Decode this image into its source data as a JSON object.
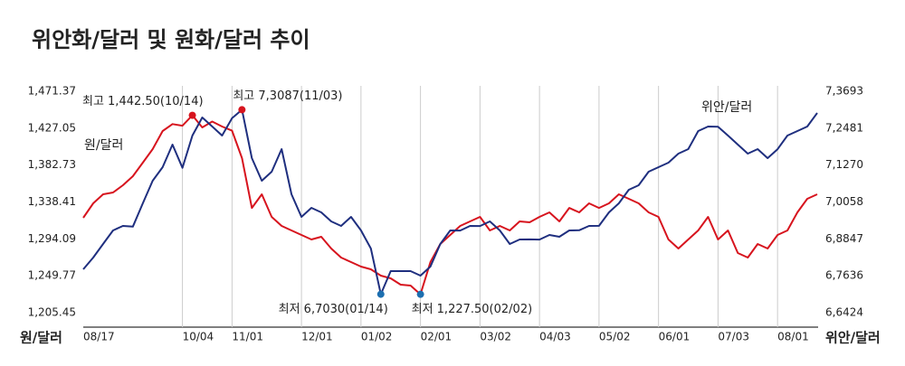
{
  "chart_data": {
    "type": "line",
    "title": "위안화/달러 및 원화/달러 추이",
    "ylabel": "원/달러",
    "y2label": "위안/달러",
    "categories": [
      "08/17",
      null,
      null,
      null,
      null,
      null,
      null,
      null,
      null,
      null,
      "10/04",
      null,
      null,
      null,
      null,
      "11/01",
      null,
      null,
      null,
      null,
      null,
      null,
      "12/01",
      null,
      null,
      null,
      null,
      null,
      "01/02",
      null,
      null,
      null,
      null,
      null,
      "02/01",
      null,
      null,
      null,
      null,
      null,
      "03/02",
      null,
      null,
      null,
      null,
      null,
      "04/03",
      null,
      null,
      null,
      null,
      null,
      "05/02",
      null,
      null,
      null,
      null,
      null,
      "06/01",
      null,
      null,
      null,
      null,
      null,
      "07/03",
      null,
      null,
      null,
      null,
      null,
      "08/01",
      null,
      null,
      null,
      null
    ],
    "series": [
      {
        "name": "원/달러",
        "color": "#d7141e",
        "axis": "y",
        "high_label": "최고 1,442.50(10/14)",
        "low_label": "최저 1,227.50(02/02)",
        "values": [
          1319.4,
          1336.8,
          1347.6,
          1349.8,
          1358.5,
          1369.3,
          1385.6,
          1401.9,
          1423.6,
          1432,
          1430,
          1442.5,
          1428,
          1435,
          1429.0,
          1424,
          1391.0,
          1331.3,
          1347.6,
          1320.5,
          1309.6,
          1304.2,
          1298.8,
          1293.4,
          1296.6,
          1282.5,
          1271.7,
          1266.2,
          1260.8,
          1257.5,
          1249.9,
          1246.7,
          1239.1,
          1238.0,
          1227.5,
          1266.2,
          1287.9,
          1298.8,
          1309.6,
          1315.1,
          1320.5,
          1304.2,
          1309.6,
          1304.2,
          1315.1,
          1314.0,
          1320.5,
          1325.9,
          1315.1,
          1331.3,
          1325.9,
          1336.8,
          1331.3,
          1336.8,
          1347.6,
          1342.2,
          1336.8,
          1325.9,
          1320.5,
          1293.4,
          1282.5,
          1293.4,
          1304.2,
          1320.5,
          1293.4,
          1304.2,
          1277.1,
          1271.7,
          1287.9,
          1282.5,
          1298.8,
          1304.2,
          1325.9,
          1342.2,
          1347.6
        ]
      },
      {
        "name": "위안/달러",
        "color": "#1f2f7f",
        "axis": "y2",
        "high_label": "최고 7,3087(11/03)",
        "low_label": "최저 6,7030(01/14)",
        "values": [
          6.7848,
          6.8234,
          6.8679,
          6.9124,
          6.9272,
          6.925,
          7.0014,
          7.0756,
          7.1201,
          7.1942,
          7.118,
          7.2239,
          7.2833,
          7.2536,
          7.224,
          7.281,
          7.3087,
          7.1497,
          7.0756,
          7.1052,
          7.1794,
          7.0311,
          6.9569,
          6.9866,
          6.9717,
          6.9421,
          6.9272,
          6.9569,
          6.9124,
          6.8531,
          6.703,
          6.7789,
          6.779,
          6.7788,
          6.764,
          6.7937,
          6.8679,
          6.9124,
          6.912,
          6.9272,
          6.927,
          6.9421,
          6.9124,
          6.8679,
          6.8827,
          6.883,
          6.8825,
          6.8976,
          6.8916,
          6.9124,
          6.913,
          6.9272,
          6.9275,
          6.9717,
          7.0014,
          7.0459,
          7.0607,
          7.1052,
          7.1201,
          7.1349,
          7.1646,
          7.1794,
          7.2387,
          7.2536,
          7.253,
          7.2239,
          7.1942,
          7.1646,
          7.1794,
          7.1497,
          7.179,
          7.2239,
          7.2387,
          7.2536,
          7.2981
        ]
      }
    ],
    "high_color": "#d7141e",
    "low_color": "#1d6fb0",
    "ylim": [
      1205.45,
      1471.37
    ],
    "yticks": [
      {
        "value": 1205.45,
        "label": "1,205.45"
      },
      {
        "value": 1249.77,
        "label": "1,249.77"
      },
      {
        "value": 1294.09,
        "label": "1,294.09"
      },
      {
        "value": 1338.41,
        "label": "1,338.41"
      },
      {
        "value": 1382.73,
        "label": "1,382.73"
      },
      {
        "value": 1427.05,
        "label": "1,427.05"
      },
      {
        "value": 1471.37,
        "label": "1,471.37"
      }
    ],
    "y2lim": [
      6.6424,
      7.3693
    ],
    "y2ticks": [
      {
        "value": 6.6424,
        "label": "6,6424"
      },
      {
        "value": 6.7636,
        "label": "6,7636"
      },
      {
        "value": 6.8847,
        "label": "6,8847"
      },
      {
        "value": 7.0058,
        "label": "7,0058"
      },
      {
        "value": 7.127,
        "label": "7,1270"
      },
      {
        "value": 7.2481,
        "label": "7,2481"
      },
      {
        "value": 7.3693,
        "label": "7,3693"
      }
    ],
    "grid": true
  }
}
